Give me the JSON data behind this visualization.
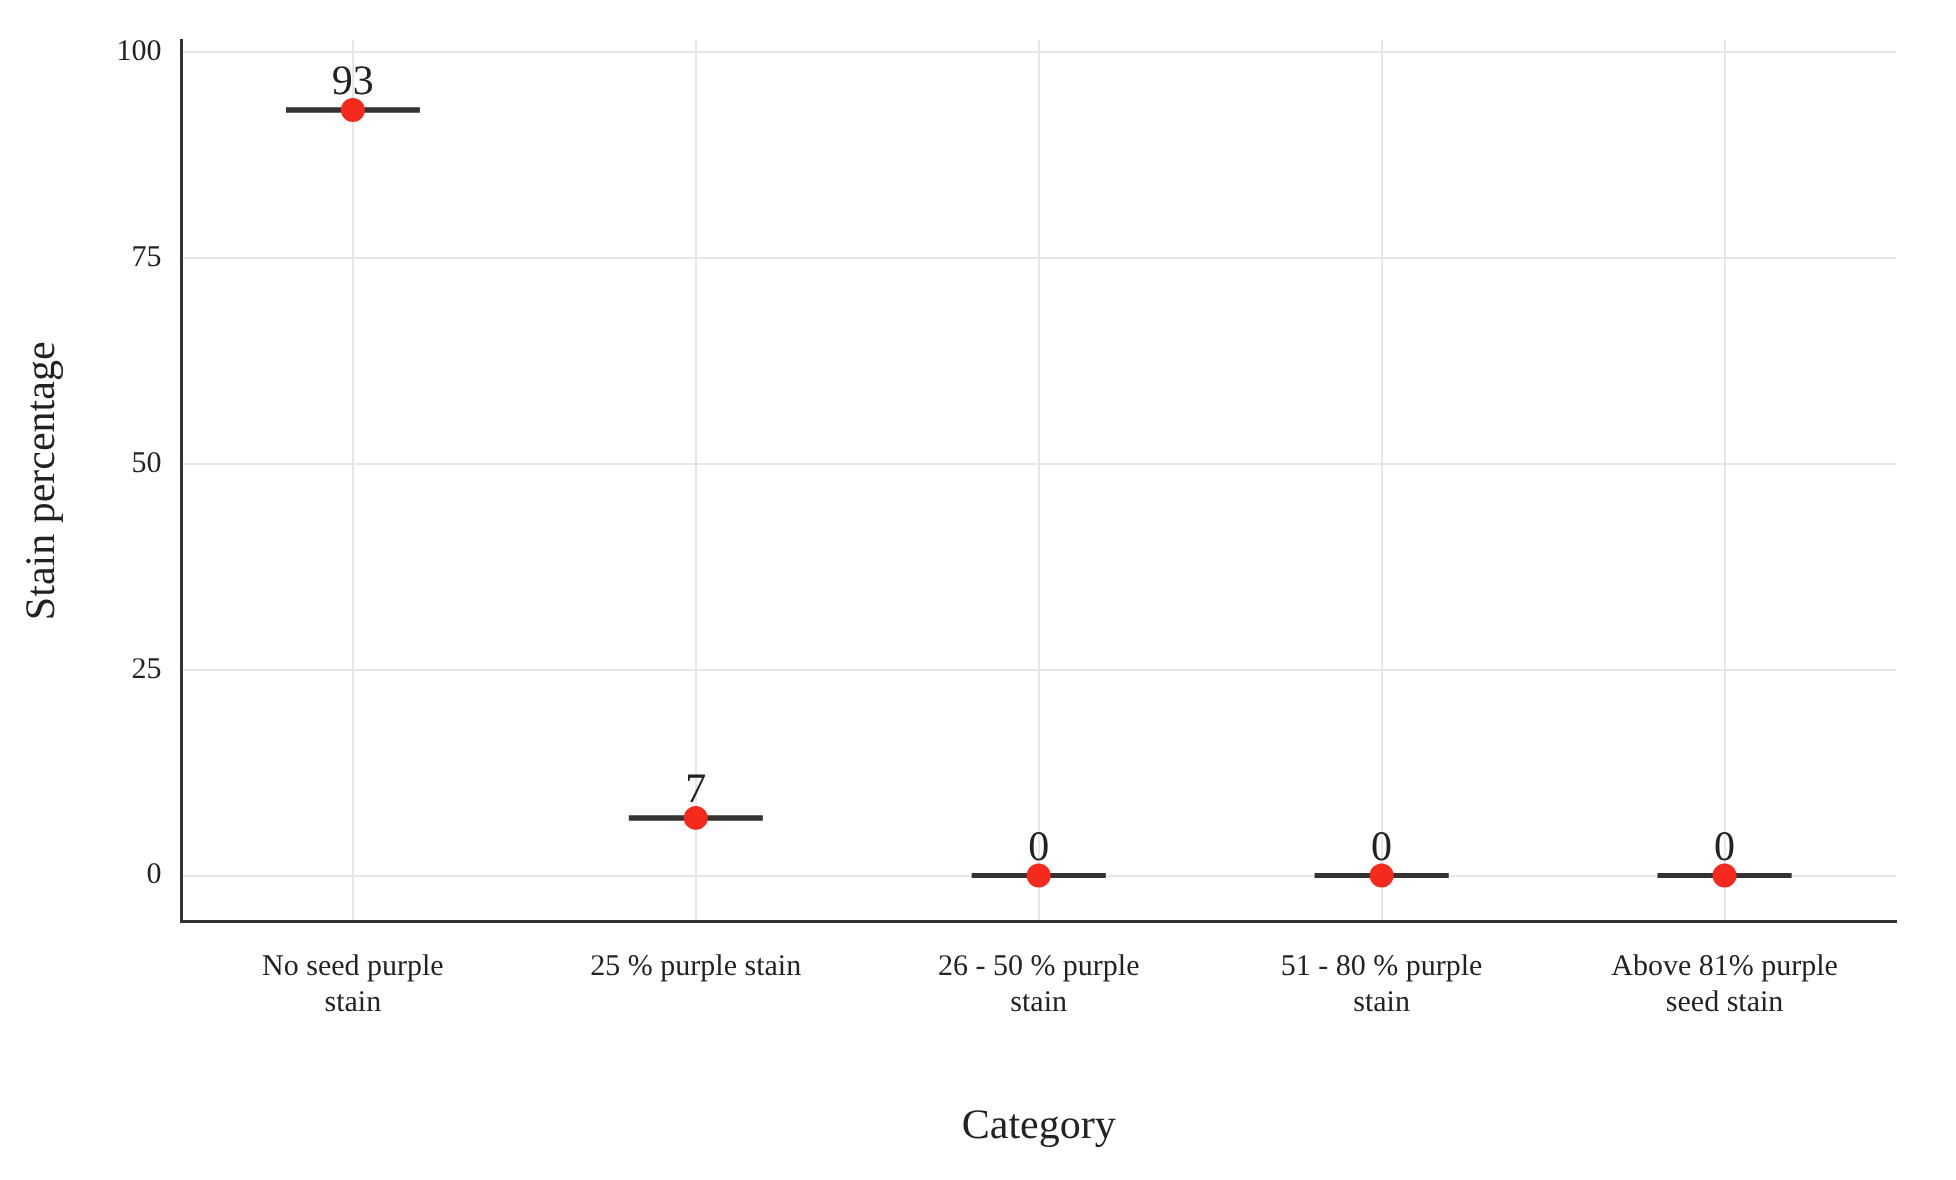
{
  "chart_data": {
    "type": "box",
    "xlabel": "Category",
    "ylabel": "Stain percentage",
    "categories": [
      "No seed purple stain",
      "25 % purple stain",
      "26 - 50 % purple stain",
      "51 - 80 % purple stain",
      "Above 81% purple seed stain"
    ],
    "boxes": [
      {
        "low": 93,
        "q1": 93,
        "median": 93,
        "q3": 93,
        "high": 93
      },
      {
        "low": 7,
        "q1": 7,
        "median": 7,
        "q3": 7,
        "high": 7
      },
      {
        "low": 0,
        "q1": 0,
        "median": 0,
        "q3": 0,
        "high": 0
      },
      {
        "low": 0,
        "q1": 0,
        "median": 0,
        "q3": 0,
        "high": 0
      },
      {
        "low": 0,
        "q1": 0,
        "median": 0,
        "q3": 0,
        "high": 0
      }
    ],
    "series": [
      {
        "type": "scatter",
        "x": [
          "No seed purple stain",
          "25 % purple stain",
          "26 - 50 % purple stain",
          "51 - 80 % purple stain",
          "Above 81% purple seed stain"
        ],
        "values": [
          93,
          7,
          0,
          0,
          0
        ],
        "color": "#f42a1c"
      }
    ],
    "marker": "circle",
    "ylim": [
      -5.6,
      101.5
    ],
    "yticks": [
      0,
      25,
      50,
      75,
      100
    ],
    "grid": true,
    "data_labels": true,
    "legend": false
  }
}
